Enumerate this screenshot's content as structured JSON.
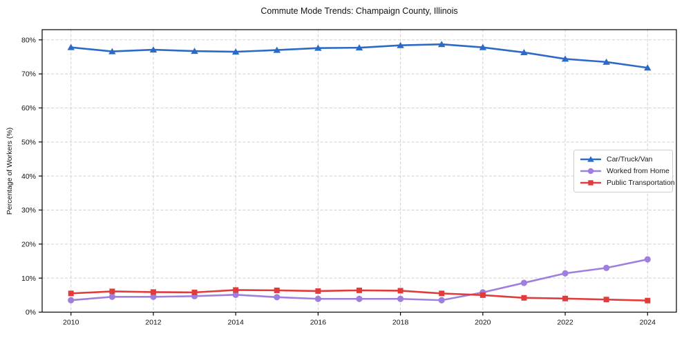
{
  "chart_data": {
    "type": "line",
    "title": "Commute Mode Trends: Champaign County, Illinois",
    "ylabel": "Percentage of Workers (%)",
    "xlabel": "",
    "x": [
      2010,
      2011,
      2012,
      2013,
      2014,
      2015,
      2016,
      2017,
      2018,
      2019,
      2020,
      2021,
      2022,
      2023,
      2024
    ],
    "series": [
      {
        "name": "Car/Truck/Van",
        "color": "#2b6ac6",
        "marker": "triangle",
        "values": [
          77.8,
          76.6,
          77.1,
          76.7,
          76.5,
          77.0,
          77.6,
          77.7,
          78.4,
          78.7,
          77.8,
          76.3,
          74.4,
          73.5,
          71.8
        ]
      },
      {
        "name": "Worked from Home",
        "color": "#9f7fdd",
        "marker": "circle",
        "values": [
          3.5,
          4.5,
          4.5,
          4.7,
          5.1,
          4.4,
          3.9,
          3.9,
          3.9,
          3.5,
          5.8,
          8.6,
          11.4,
          13.0,
          15.5
        ]
      },
      {
        "name": "Public Transportation",
        "color": "#e13c3c",
        "marker": "square",
        "values": [
          5.5,
          6.1,
          5.9,
          5.8,
          6.5,
          6.4,
          6.2,
          6.4,
          6.3,
          5.5,
          5.0,
          4.2,
          4.0,
          3.7,
          3.4
        ]
      }
    ],
    "x_ticks": [
      2010,
      2012,
      2014,
      2016,
      2018,
      2020,
      2022,
      2024
    ],
    "x_tick_labels": [
      "2010",
      "2012",
      "2014",
      "2016",
      "2018",
      "2020",
      "2022",
      "2024"
    ],
    "y_ticks": [
      0,
      10,
      20,
      30,
      40,
      50,
      60,
      70,
      80
    ],
    "y_tick_labels": [
      "0%",
      "10%",
      "20%",
      "30%",
      "40%",
      "50%",
      "60%",
      "70%",
      "80%"
    ],
    "xlim": [
      2009.3,
      2024.7
    ],
    "ylim": [
      0,
      83
    ],
    "grid": true,
    "legend_position": "center right"
  },
  "colors": {
    "background": "#ffffff",
    "grid": "#d0d0d0",
    "spine": "#000000",
    "tick_text": "#111111",
    "legend_border": "#cccccc"
  }
}
